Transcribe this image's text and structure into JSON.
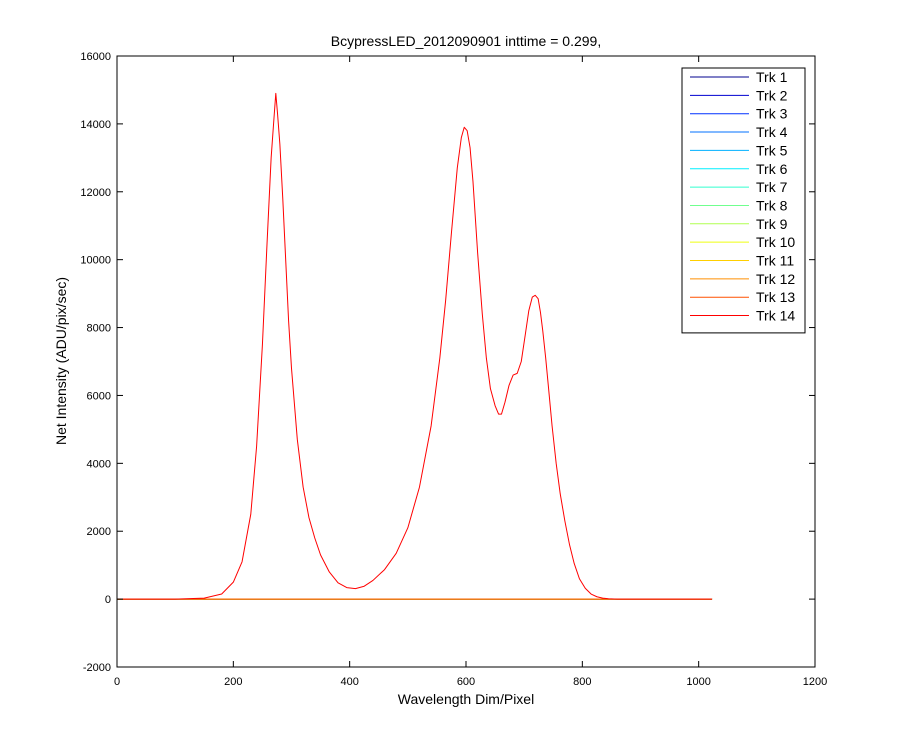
{
  "chart_data": {
    "type": "line",
    "title": "BcypressLED_2012090901 inttime = 0.299,",
    "xlabel": "Wavelength Dim/Pixel",
    "ylabel": "Net Intensity (ADU/pix/sec)",
    "xlim": [
      0,
      1200
    ],
    "ylim": [
      -2000,
      16000
    ],
    "xticks": [
      0,
      200,
      400,
      600,
      800,
      1000,
      1200
    ],
    "xtick_labels": [
      "0",
      "200",
      "400",
      "600",
      "800",
      "1000",
      "1200"
    ],
    "yticks": [
      -2000,
      0,
      2000,
      4000,
      6000,
      8000,
      10000,
      12000,
      14000,
      16000
    ],
    "ytick_labels": [
      "-2000",
      "0",
      "2000",
      "4000",
      "6000",
      "8000",
      "10000",
      "12000",
      "14000",
      "16000"
    ],
    "grid": false,
    "legend_position": "top-right",
    "series": [
      {
        "name": "Trk 1",
        "color": "#00008F",
        "x": [
          0,
          1023
        ],
        "y": [
          0,
          0
        ]
      },
      {
        "name": "Trk 2",
        "color": "#0000CF",
        "x": [
          0,
          1023
        ],
        "y": [
          0,
          0
        ]
      },
      {
        "name": "Trk 3",
        "color": "#0030FF",
        "x": [
          0,
          1023
        ],
        "y": [
          0,
          0
        ]
      },
      {
        "name": "Trk 4",
        "color": "#0070FF",
        "x": [
          0,
          1023
        ],
        "y": [
          0,
          0
        ]
      },
      {
        "name": "Trk 5",
        "color": "#00B0FF",
        "x": [
          0,
          1023
        ],
        "y": [
          0,
          0
        ]
      },
      {
        "name": "Trk 6",
        "color": "#00EFFF",
        "x": [
          0,
          1023
        ],
        "y": [
          0,
          0
        ]
      },
      {
        "name": "Trk 7",
        "color": "#30FFCF",
        "x": [
          0,
          1023
        ],
        "y": [
          0,
          0
        ]
      },
      {
        "name": "Trk 8",
        "color": "#70FF8F",
        "x": [
          0,
          1023
        ],
        "y": [
          0,
          0
        ]
      },
      {
        "name": "Trk 9",
        "color": "#B0FF50",
        "x": [
          0,
          1023
        ],
        "y": [
          0,
          0
        ]
      },
      {
        "name": "Trk 10",
        "color": "#EFFF10",
        "x": [
          0,
          1023
        ],
        "y": [
          0,
          0
        ]
      },
      {
        "name": "Trk 11",
        "color": "#FFCF00",
        "x": [
          0,
          1023
        ],
        "y": [
          0,
          0
        ]
      },
      {
        "name": "Trk 12",
        "color": "#FF8F00",
        "x": [
          0,
          1023
        ],
        "y": [
          0,
          0
        ]
      },
      {
        "name": "Trk 13",
        "color": "#FF5000",
        "x": [
          0,
          1023
        ],
        "y": [
          0,
          0
        ]
      },
      {
        "name": "Trk 14",
        "color": "#FF0000",
        "x": [
          0,
          100,
          150,
          180,
          200,
          215,
          230,
          240,
          250,
          258,
          265,
          270,
          273,
          276,
          280,
          285,
          290,
          295,
          300,
          310,
          320,
          330,
          340,
          350,
          365,
          380,
          395,
          410,
          425,
          440,
          460,
          480,
          500,
          520,
          540,
          555,
          565,
          575,
          585,
          592,
          597,
          602,
          607,
          612,
          620,
          628,
          635,
          642,
          650,
          656,
          661,
          667,
          674,
          681,
          688,
          695,
          702,
          708,
          714,
          719,
          724,
          728,
          732,
          737,
          742,
          748,
          755,
          762,
          770,
          778,
          786,
          795,
          805,
          815,
          825,
          835,
          845,
          860,
          900,
          1023
        ],
        "y": [
          0,
          0,
          30,
          150,
          500,
          1100,
          2500,
          4500,
          7500,
          10500,
          13000,
          14200,
          14900,
          14300,
          13400,
          11800,
          10000,
          8200,
          6800,
          4700,
          3300,
          2400,
          1800,
          1300,
          800,
          480,
          340,
          310,
          380,
          550,
          870,
          1350,
          2100,
          3300,
          5100,
          7100,
          8800,
          10800,
          12700,
          13600,
          13900,
          13800,
          13300,
          12300,
          10200,
          8400,
          7100,
          6200,
          5700,
          5450,
          5450,
          5800,
          6300,
          6600,
          6650,
          7000,
          7800,
          8500,
          8900,
          8950,
          8850,
          8450,
          7900,
          7100,
          6200,
          5100,
          4000,
          3100,
          2300,
          1600,
          1050,
          600,
          320,
          150,
          70,
          30,
          10,
          0,
          0,
          0
        ]
      }
    ]
  }
}
